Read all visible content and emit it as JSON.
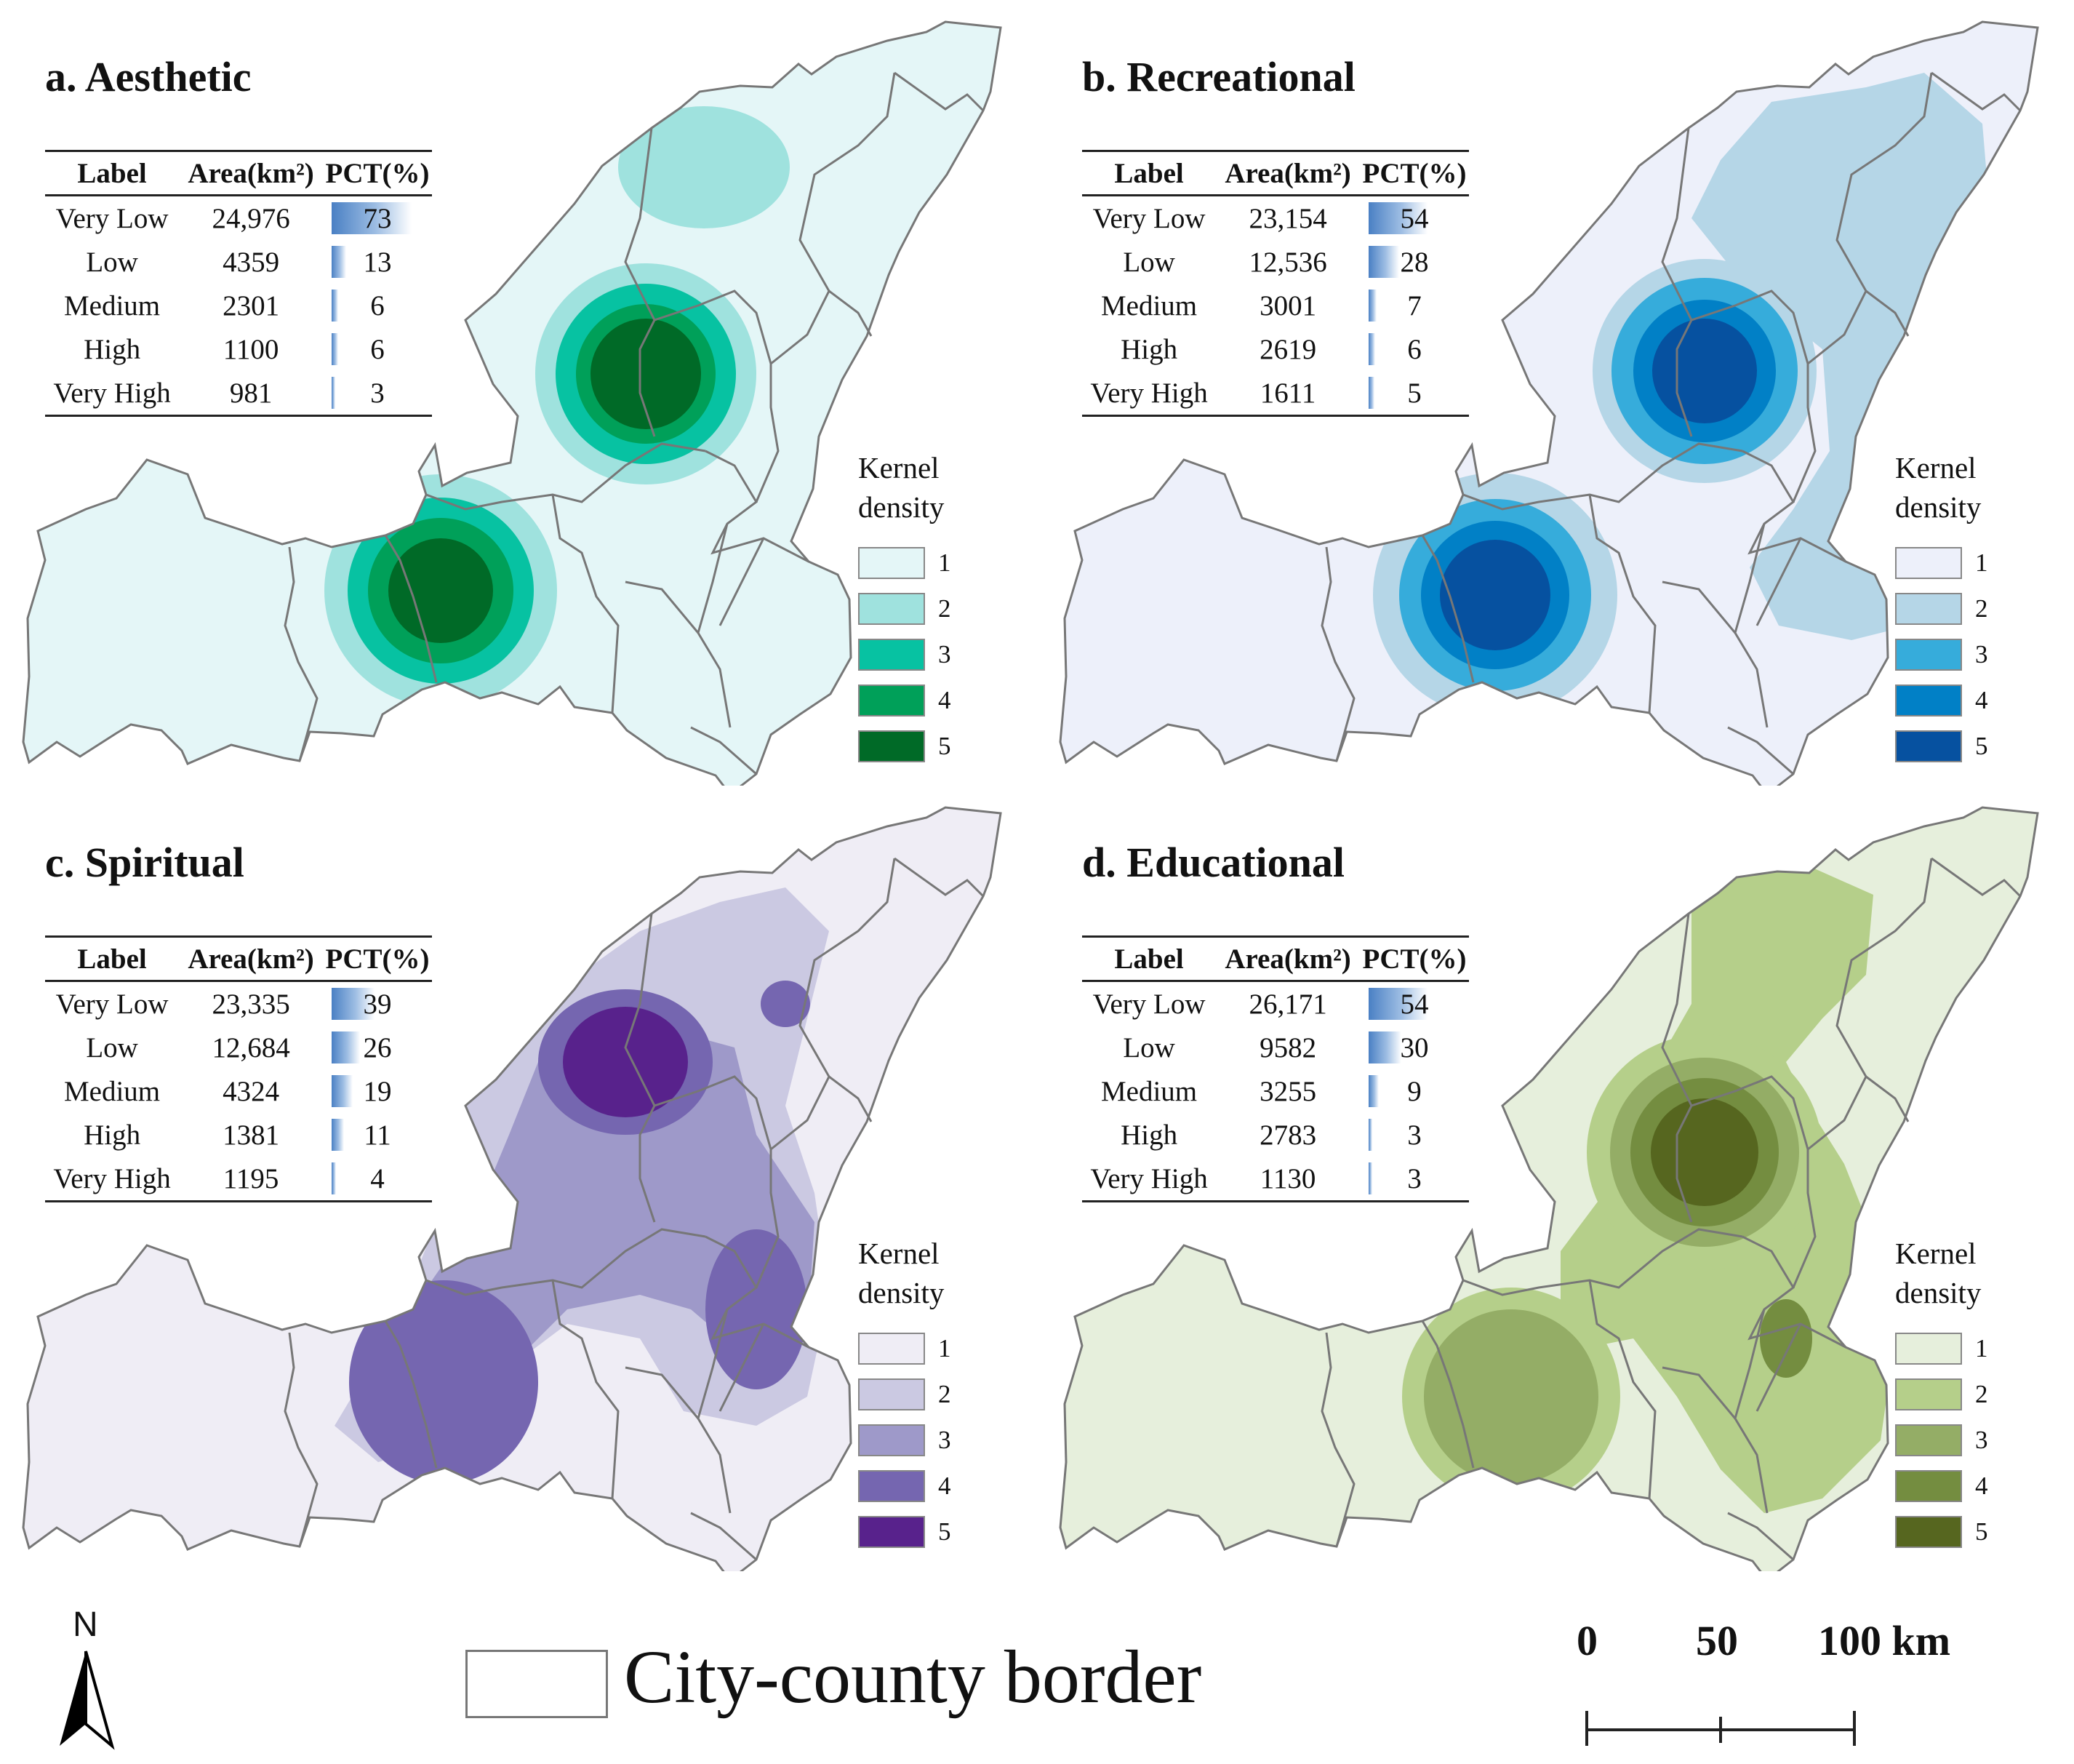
{
  "panels": [
    {
      "title": "a. Aesthetic",
      "colors": [
        "#e4f6f7",
        "#9fe2de",
        "#07c2a2",
        "#00a059",
        "#006a27"
      ],
      "table": {
        "headers": [
          "Label",
          "Area(km²)",
          "PCT(%)"
        ],
        "rows": [
          {
            "label": "Very Low",
            "area": "24,976",
            "pct": "73",
            "pct_value": 73
          },
          {
            "label": "Low",
            "area": "4359",
            "pct": "13",
            "pct_value": 13
          },
          {
            "label": "Medium",
            "area": "2301",
            "pct": "6",
            "pct_value": 6
          },
          {
            "label": "High",
            "area": "1100",
            "pct": "6",
            "pct_value": 6
          },
          {
            "label": "Very High",
            "area": "981",
            "pct": "3",
            "pct_value": 3
          }
        ]
      },
      "legend": {
        "title_line1": "Kernel",
        "title_line2": "density",
        "classes": [
          "1",
          "2",
          "3",
          "4",
          "5"
        ]
      }
    },
    {
      "title": "b. Recreational",
      "colors": [
        "#edf0fa",
        "#b5d6e7",
        "#36acdb",
        "#0180c6",
        "#0651a0"
      ],
      "table": {
        "headers": [
          "Label",
          "Area(km²)",
          "PCT(%)"
        ],
        "rows": [
          {
            "label": "Very Low",
            "area": "23,154",
            "pct": "54",
            "pct_value": 54
          },
          {
            "label": "Low",
            "area": "12,536",
            "pct": "28",
            "pct_value": 28
          },
          {
            "label": "Medium",
            "area": "3001",
            "pct": "7",
            "pct_value": 7
          },
          {
            "label": "High",
            "area": "2619",
            "pct": "6",
            "pct_value": 6
          },
          {
            "label": "Very High",
            "area": "1611",
            "pct": "5",
            "pct_value": 5
          }
        ]
      },
      "legend": {
        "title_line1": "Kernel",
        "title_line2": "density",
        "classes": [
          "1",
          "2",
          "3",
          "4",
          "5"
        ]
      }
    },
    {
      "title": "c. Spiritual",
      "colors": [
        "#efedf5",
        "#cbc9e2",
        "#9e99c9",
        "#7566b0",
        "#58228c"
      ],
      "table": {
        "headers": [
          "Label",
          "Area(km²)",
          "PCT(%)"
        ],
        "rows": [
          {
            "label": "Very Low",
            "area": "23,335",
            "pct": "39",
            "pct_value": 39
          },
          {
            "label": "Low",
            "area": "12,684",
            "pct": "26",
            "pct_value": 26
          },
          {
            "label": "Medium",
            "area": "4324",
            "pct": "19",
            "pct_value": 19
          },
          {
            "label": "High",
            "area": "1381",
            "pct": "11",
            "pct_value": 11
          },
          {
            "label": "Very High",
            "area": "1195",
            "pct": "4",
            "pct_value": 4
          }
        ]
      },
      "legend": {
        "title_line1": "Kernel",
        "title_line2": "density",
        "classes": [
          "1",
          "2",
          "3",
          "4",
          "5"
        ]
      }
    },
    {
      "title": "d. Educational",
      "colors": [
        "#e6efdc",
        "#b5cf8a",
        "#94ad66",
        "#748d40",
        "#56661f"
      ],
      "table": {
        "headers": [
          "Label",
          "Area(km²)",
          "PCT(%)"
        ],
        "rows": [
          {
            "label": "Very Low",
            "area": "26,171",
            "pct": "54",
            "pct_value": 54
          },
          {
            "label": "Low",
            "area": "9582",
            "pct": "30",
            "pct_value": 30
          },
          {
            "label": "Medium",
            "area": "3255",
            "pct": "9",
            "pct_value": 9
          },
          {
            "label": "High",
            "area": "2783",
            "pct": "3",
            "pct_value": 3
          },
          {
            "label": "Very High",
            "area": "1130",
            "pct": "3",
            "pct_value": 3
          }
        ]
      },
      "legend": {
        "title_line1": "Kernel",
        "title_line2": "density",
        "classes": [
          "1",
          "2",
          "3",
          "4",
          "5"
        ]
      }
    }
  ],
  "border_color": "#777777",
  "north_arrow": {
    "label": "N",
    "icon": "north-arrow-icon"
  },
  "border_legend": {
    "label": "City-county border"
  },
  "scale_bar": {
    "labels": [
      "0",
      "50",
      "100 km"
    ]
  }
}
